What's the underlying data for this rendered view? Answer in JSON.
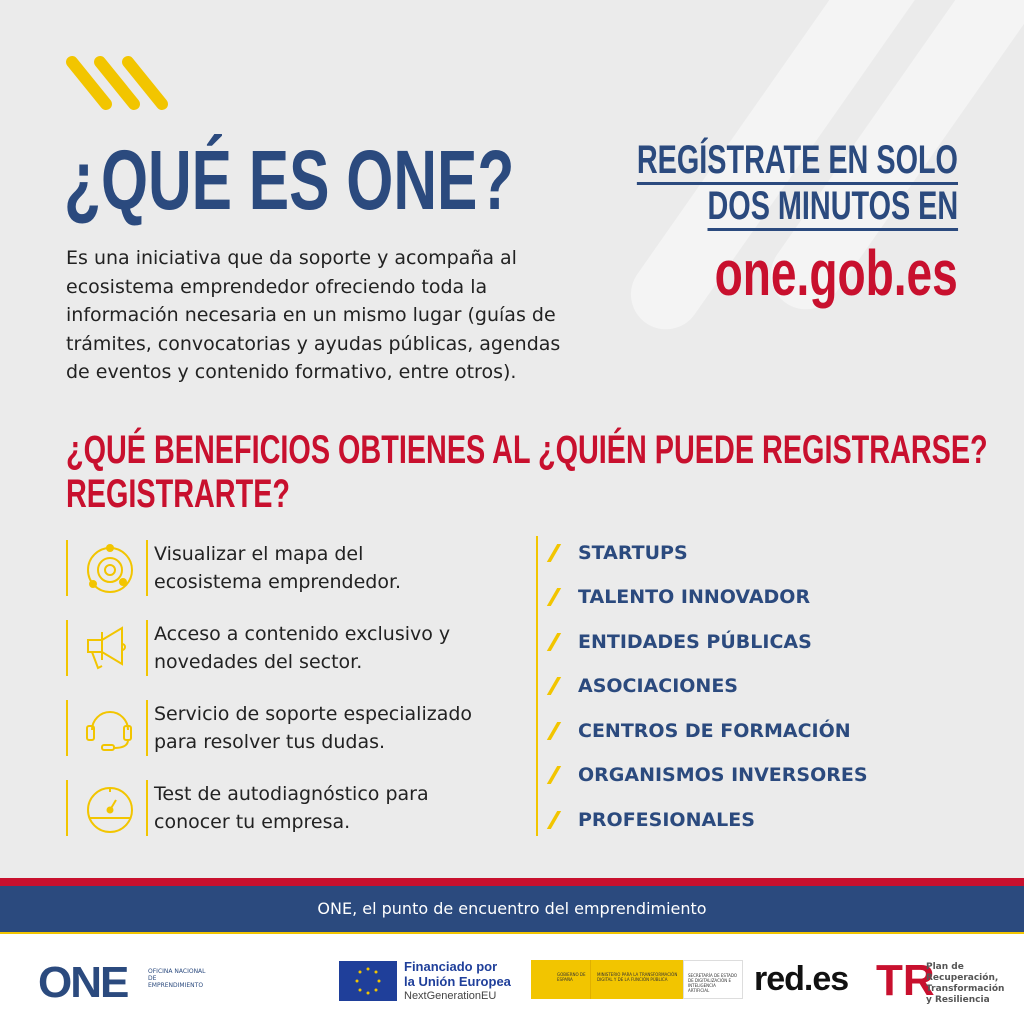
{
  "header": {
    "title": "¿QUÉ ES ONE?",
    "description": "Es una iniciativa que da soporte y acompaña al ecosistema emprendedor ofreciendo toda la información necesaria en un mismo lugar (guías de trámites, convocatorias y ayudas públicas, agendas de eventos y contenido formativo, entre otros)."
  },
  "register": {
    "line1": "REGÍSTRATE EN SOLO",
    "line2": "DOS MINUTOS EN",
    "url": "one.gob.es"
  },
  "benefits": {
    "heading_line1": "¿QUÉ BENEFICIOS OBTIENES AL",
    "heading_line2": "REGISTRARTE?",
    "items": [
      {
        "icon": "ecosystem-orbit-icon",
        "line1": "Visualizar el mapa del",
        "line2": "ecosistema emprendedor."
      },
      {
        "icon": "megaphone-icon",
        "line1": "Acceso a contenido exclusivo y",
        "line2": "novedades del sector."
      },
      {
        "icon": "headset-icon",
        "line1": "Servicio de soporte especializado",
        "line2": "para resolver tus dudas."
      },
      {
        "icon": "speedometer-icon",
        "line1": "Test de autodiagnóstico para",
        "line2": "conocer tu empresa."
      }
    ]
  },
  "who": {
    "heading": "¿QUIÉN PUEDE REGISTRARSE?",
    "items": [
      "STARTUPS",
      "TALENTO INNOVADOR",
      "ENTIDADES PÚBLICAS",
      "ASOCIACIONES",
      "CENTROS DE FORMACIÓN",
      "ORGANISMOS INVERSORES",
      "PROFESIONALES"
    ]
  },
  "footer": {
    "tagline": "ONE, el punto de encuentro del emprendimiento"
  },
  "logos": {
    "one": {
      "mark": "ONE",
      "text": "OFICINA NACIONAL DE EMPRENDIMIENTO"
    },
    "eu": {
      "line1": "Financiado por",
      "line2": "la Unión Europea",
      "line3": "NextGenerationEU"
    },
    "gov": {
      "a": "GOBIERNO DE ESPAÑA",
      "b": "MINISTERIO PARA LA TRANSFORMACIÓN DIGITAL Y DE LA FUNCIÓN PÚBLICA",
      "c": "SECRETARÍA DE ESTADO DE DIGITALIZACIÓN E INTELIGENCIA ARTIFICIAL"
    },
    "redes": "red.es",
    "prtr": {
      "line1": "Plan de",
      "line2": "Recuperación,",
      "line3": "Transformación",
      "line4": "y Resiliencia"
    }
  },
  "colors": {
    "blue": "#2b4a7e",
    "red": "#c8102e",
    "yellow": "#f2c500",
    "background": "#ebebeb"
  }
}
